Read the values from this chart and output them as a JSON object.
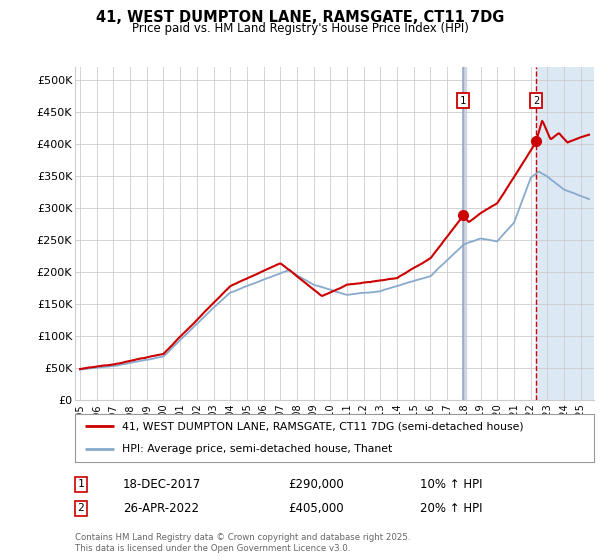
{
  "title": "41, WEST DUMPTON LANE, RAMSGATE, CT11 7DG",
  "subtitle": "Price paid vs. HM Land Registry's House Price Index (HPI)",
  "ylabel_ticks": [
    "£0",
    "£50K",
    "£100K",
    "£150K",
    "£200K",
    "£250K",
    "£300K",
    "£350K",
    "£400K",
    "£450K",
    "£500K"
  ],
  "ytick_values": [
    0,
    50000,
    100000,
    150000,
    200000,
    250000,
    300000,
    350000,
    400000,
    450000,
    500000
  ],
  "ylim": [
    0,
    520000
  ],
  "xlim_start": 1994.7,
  "xlim_end": 2025.8,
  "sale1_date": 2017.96,
  "sale1_price": 290000,
  "sale2_date": 2022.32,
  "sale2_price": 405000,
  "transaction1_date_str": "18-DEC-2017",
  "transaction1_price_str": "£290,000",
  "transaction1_hpi_str": "10% ↑ HPI",
  "transaction2_date_str": "26-APR-2022",
  "transaction2_price_str": "£405,000",
  "transaction2_hpi_str": "20% ↑ HPI",
  "legend_line1": "41, WEST DUMPTON LANE, RAMSGATE, CT11 7DG (semi-detached house)",
  "legend_line2": "HPI: Average price, semi-detached house, Thanet",
  "footer": "Contains HM Land Registry data © Crown copyright and database right 2025.\nThis data is licensed under the Open Government Licence v3.0.",
  "property_color": "#cc0000",
  "hpi_color": "#88aacc",
  "vline1_color": "#8899bb",
  "vline2_color": "#cc0000",
  "bg_color": "#ffffff",
  "grid_color": "#cccccc",
  "sale_box_color": "#cc0000",
  "highlight_color": "#dde8f5"
}
